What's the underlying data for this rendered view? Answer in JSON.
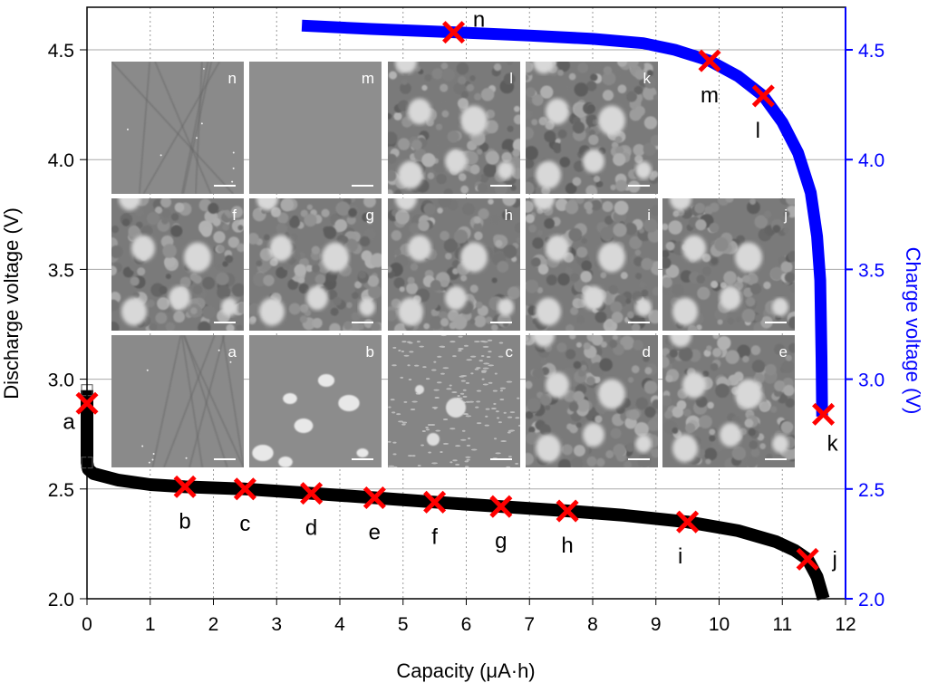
{
  "chart_data": {
    "type": "line",
    "xlabel": "Capacity (μA·h)",
    "ylabel_left": "Discharge  voltage (V)",
    "ylabel_right": "Charge  voltage (V)",
    "xlim": [
      0,
      12
    ],
    "ylim": [
      2.0,
      4.69
    ],
    "x_ticks": [
      "0",
      "1",
      "2",
      "3",
      "4",
      "5",
      "6",
      "7",
      "8",
      "9",
      "10",
      "11",
      "12"
    ],
    "y_ticks": [
      "2.0",
      "2.5",
      "3.0",
      "3.5",
      "4.0",
      "4.5"
    ],
    "grid": true,
    "colors": {
      "discharge": "#000000",
      "charge": "#0000ff",
      "marker": "#ff0000",
      "right_axis": "#0000ff"
    },
    "series": [
      {
        "name": "Discharge",
        "axis": "left",
        "x": [
          0,
          0,
          0.02,
          0.1,
          0.5,
          1.0,
          1.55,
          2.5,
          3.55,
          4.55,
          5.5,
          6.55,
          7.6,
          8.5,
          9.5,
          10.3,
          10.9,
          11.2,
          11.4,
          11.55,
          11.65
        ],
        "y": [
          2.95,
          2.62,
          2.59,
          2.57,
          2.54,
          2.52,
          2.51,
          2.5,
          2.48,
          2.46,
          2.44,
          2.42,
          2.4,
          2.38,
          2.35,
          2.31,
          2.26,
          2.22,
          2.18,
          2.1,
          2.0
        ]
      },
      {
        "name": "Charge",
        "axis": "right",
        "x": [
          3.4,
          4.5,
          5.8,
          7.0,
          8.0,
          8.8,
          9.3,
          9.85,
          10.3,
          10.7,
          11.0,
          11.25,
          11.45,
          11.55,
          11.6,
          11.62,
          11.63
        ],
        "y": [
          4.61,
          4.595,
          4.58,
          4.565,
          4.55,
          4.53,
          4.5,
          4.45,
          4.38,
          4.29,
          4.17,
          4.03,
          3.85,
          3.65,
          3.45,
          3.1,
          2.83
        ]
      }
    ],
    "markers": [
      {
        "label": "a",
        "x": 0.0,
        "y": 2.89
      },
      {
        "label": "b",
        "x": 1.55,
        "y": 2.51
      },
      {
        "label": "c",
        "x": 2.5,
        "y": 2.5
      },
      {
        "label": "d",
        "x": 3.55,
        "y": 2.48
      },
      {
        "label": "e",
        "x": 4.55,
        "y": 2.46
      },
      {
        "label": "f",
        "x": 5.5,
        "y": 2.44
      },
      {
        "label": "g",
        "x": 6.55,
        "y": 2.42
      },
      {
        "label": "h",
        "x": 7.6,
        "y": 2.4
      },
      {
        "label": "i",
        "x": 9.5,
        "y": 2.35
      },
      {
        "label": "j",
        "x": 11.4,
        "y": 2.18
      },
      {
        "label": "k",
        "x": 11.65,
        "y": 2.84
      },
      {
        "label": "l",
        "x": 10.7,
        "y": 4.29
      },
      {
        "label": "m",
        "x": 9.85,
        "y": 4.45
      },
      {
        "label": "n",
        "x": 5.8,
        "y": 4.58
      }
    ],
    "insets": [
      [
        {
          "label": "n",
          "texture": "scratched"
        },
        {
          "label": "m",
          "texture": "flat"
        },
        {
          "label": "l",
          "texture": "granular"
        },
        {
          "label": "k",
          "texture": "granular"
        }
      ],
      [
        {
          "label": "f",
          "texture": "granular"
        },
        {
          "label": "g",
          "texture": "granular"
        },
        {
          "label": "h",
          "texture": "granular"
        },
        {
          "label": "i",
          "texture": "granular"
        },
        {
          "label": "j",
          "texture": "granular"
        }
      ],
      [
        {
          "label": "a",
          "texture": "scratched"
        },
        {
          "label": "b",
          "texture": "blobs"
        },
        {
          "label": "c",
          "texture": "small-particles"
        },
        {
          "label": "d",
          "texture": "granular"
        },
        {
          "label": "e",
          "texture": "granular"
        }
      ]
    ]
  }
}
